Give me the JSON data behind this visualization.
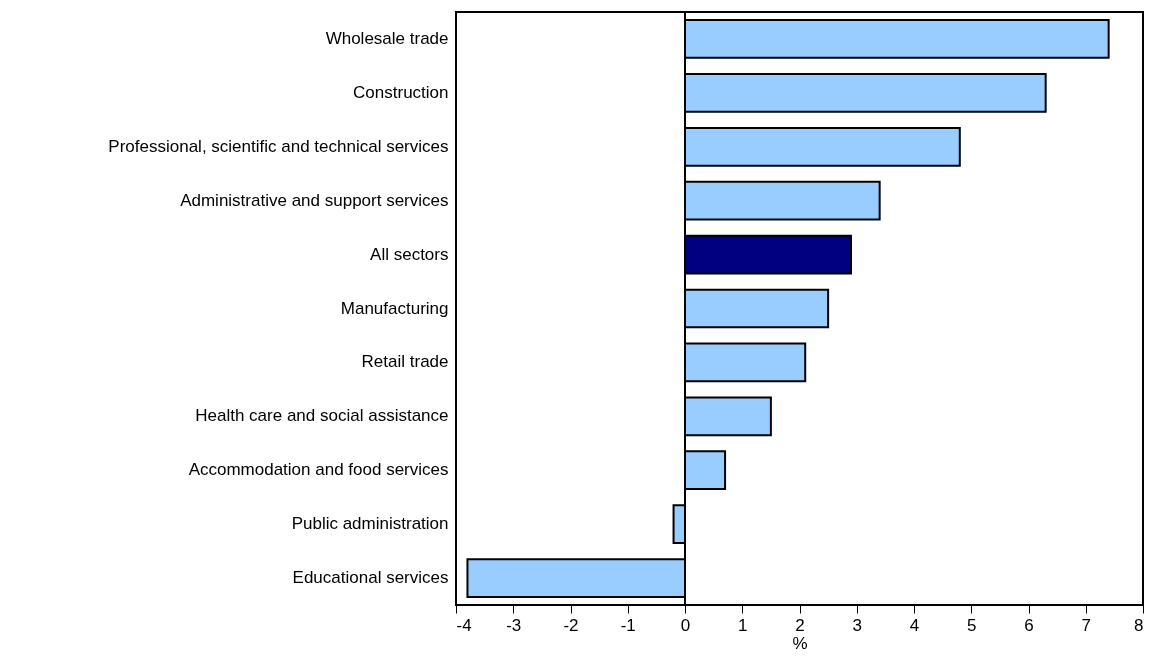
{
  "chart_data": {
    "type": "bar",
    "orientation": "horizontal",
    "xlabel": "%",
    "categories": [
      "Wholesale trade",
      "Construction",
      "Professional, scientific and technical services",
      "Administrative and support services",
      "All sectors",
      "Manufacturing",
      "Retail trade",
      "Health care and social assistance",
      "Accommodation and food services",
      "Public administration",
      "Educational services"
    ],
    "values": [
      7.4,
      6.3,
      4.8,
      3.4,
      2.9,
      2.5,
      2.1,
      1.5,
      0.7,
      -0.2,
      -3.8
    ],
    "colors": [
      "#99ccff",
      "#99ccff",
      "#99ccff",
      "#99ccff",
      "#000080",
      "#99ccff",
      "#99ccff",
      "#99ccff",
      "#99ccff",
      "#99ccff",
      "#99ccff"
    ],
    "xlim": [
      -4,
      8
    ],
    "xticks": [
      -4,
      -3,
      -2,
      -1,
      0,
      1,
      2,
      3,
      4,
      5,
      6,
      7,
      8
    ],
    "ref_lines": [
      {
        "axis": "x",
        "value": 0
      }
    ],
    "grid": false
  }
}
